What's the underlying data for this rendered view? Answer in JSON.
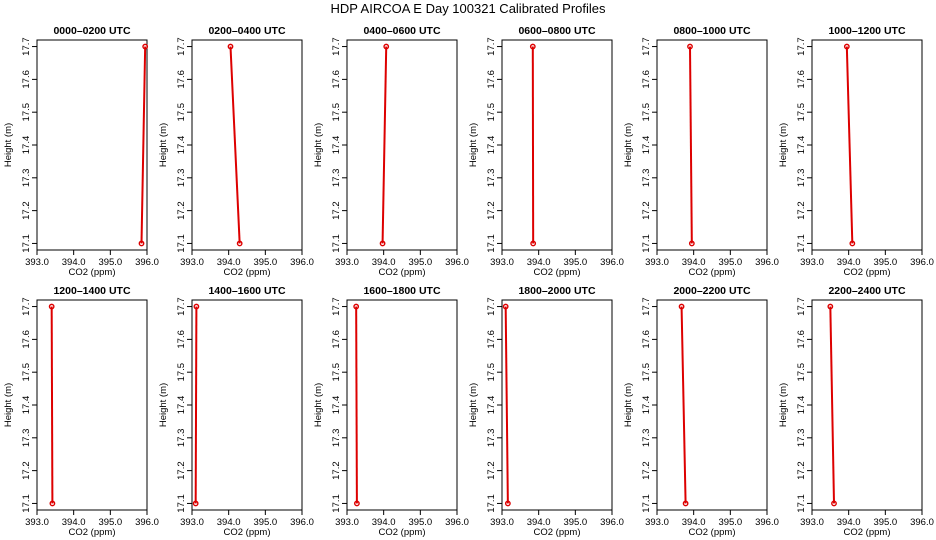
{
  "figure": {
    "title": "HDP AIRCOA E  Day 100321  Calibrated Profiles"
  },
  "colors": {
    "profile_line": "#dd0000",
    "frame": "#000000",
    "background": "#ffffff"
  },
  "chart_data": [
    {
      "type": "line",
      "title": "0000–0200 UTC",
      "xlabel": "CO2 (ppm)",
      "ylabel": "Height (m)",
      "xlim": [
        393.0,
        396.0
      ],
      "ylim": [
        17.08,
        17.72
      ],
      "grid": false,
      "xticks": [
        "393.0",
        "394.0",
        "395.0",
        "396.0"
      ],
      "yticks": [
        "17.1",
        "17.2",
        "17.3",
        "17.4",
        "17.5",
        "17.6",
        "17.7"
      ],
      "series": [
        {
          "x": [
            395.85,
            395.95
          ],
          "y": [
            17.1,
            17.7
          ]
        }
      ]
    },
    {
      "type": "line",
      "title": "0200–0400 UTC",
      "xlabel": "CO2 (ppm)",
      "ylabel": "Height (m)",
      "xlim": [
        393.0,
        396.0
      ],
      "ylim": [
        17.08,
        17.72
      ],
      "grid": false,
      "xticks": [
        "393.0",
        "394.0",
        "395.0",
        "396.0"
      ],
      "yticks": [
        "17.1",
        "17.2",
        "17.3",
        "17.4",
        "17.5",
        "17.6",
        "17.7"
      ],
      "series": [
        {
          "x": [
            394.3,
            394.05
          ],
          "y": [
            17.1,
            17.7
          ]
        }
      ]
    },
    {
      "type": "line",
      "title": "0400–0600 UTC",
      "xlabel": "CO2 (ppm)",
      "ylabel": "Height (m)",
      "xlim": [
        393.0,
        396.0
      ],
      "ylim": [
        17.08,
        17.72
      ],
      "grid": false,
      "xticks": [
        "393.0",
        "394.0",
        "395.0",
        "396.0"
      ],
      "yticks": [
        "17.1",
        "17.2",
        "17.3",
        "17.4",
        "17.5",
        "17.6",
        "17.7"
      ],
      "series": [
        {
          "x": [
            393.97,
            394.07
          ],
          "y": [
            17.1,
            17.7
          ]
        }
      ]
    },
    {
      "type": "line",
      "title": "0600–0800 UTC",
      "xlabel": "CO2 (ppm)",
      "ylabel": "Height (m)",
      "xlim": [
        393.0,
        396.0
      ],
      "ylim": [
        17.08,
        17.72
      ],
      "grid": false,
      "xticks": [
        "393.0",
        "394.0",
        "395.0",
        "396.0"
      ],
      "yticks": [
        "17.1",
        "17.2",
        "17.3",
        "17.4",
        "17.5",
        "17.6",
        "17.7"
      ],
      "series": [
        {
          "x": [
            393.85,
            393.84
          ],
          "y": [
            17.1,
            17.7
          ]
        }
      ]
    },
    {
      "type": "line",
      "title": "0800–1000 UTC",
      "xlabel": "CO2 (ppm)",
      "ylabel": "Height (m)",
      "xlim": [
        393.0,
        396.0
      ],
      "ylim": [
        17.08,
        17.72
      ],
      "grid": false,
      "xticks": [
        "393.0",
        "394.0",
        "395.0",
        "396.0"
      ],
      "yticks": [
        "17.1",
        "17.2",
        "17.3",
        "17.4",
        "17.5",
        "17.6",
        "17.7"
      ],
      "series": [
        {
          "x": [
            393.95,
            393.9
          ],
          "y": [
            17.1,
            17.7
          ]
        }
      ]
    },
    {
      "type": "line",
      "title": "1000–1200 UTC",
      "xlabel": "CO2 (ppm)",
      "ylabel": "Height (m)",
      "xlim": [
        393.0,
        396.0
      ],
      "ylim": [
        17.08,
        17.72
      ],
      "grid": false,
      "xticks": [
        "393.0",
        "394.0",
        "395.0",
        "396.0"
      ],
      "yticks": [
        "17.1",
        "17.2",
        "17.3",
        "17.4",
        "17.5",
        "17.6",
        "17.7"
      ],
      "series": [
        {
          "x": [
            394.1,
            393.95
          ],
          "y": [
            17.1,
            17.7
          ]
        }
      ]
    },
    {
      "type": "line",
      "title": "1200–1400 UTC",
      "xlabel": "CO2 (ppm)",
      "ylabel": "Height (m)",
      "xlim": [
        393.0,
        396.0
      ],
      "ylim": [
        17.08,
        17.72
      ],
      "grid": false,
      "xticks": [
        "393.0",
        "394.0",
        "395.0",
        "396.0"
      ],
      "yticks": [
        "17.1",
        "17.2",
        "17.3",
        "17.4",
        "17.5",
        "17.6",
        "17.7"
      ],
      "series": [
        {
          "x": [
            393.42,
            393.4
          ],
          "y": [
            17.1,
            17.7
          ]
        }
      ]
    },
    {
      "type": "line",
      "title": "1400–1600 UTC",
      "xlabel": "CO2 (ppm)",
      "ylabel": "Height (m)",
      "xlim": [
        393.0,
        396.0
      ],
      "ylim": [
        17.08,
        17.72
      ],
      "grid": false,
      "xticks": [
        "393.0",
        "394.0",
        "395.0",
        "396.0"
      ],
      "yticks": [
        "17.1",
        "17.2",
        "17.3",
        "17.4",
        "17.5",
        "17.6",
        "17.7"
      ],
      "series": [
        {
          "x": [
            393.1,
            393.12
          ],
          "y": [
            17.1,
            17.7
          ]
        }
      ]
    },
    {
      "type": "line",
      "title": "1600–1800 UTC",
      "xlabel": "CO2 (ppm)",
      "ylabel": "Height (m)",
      "xlim": [
        393.0,
        396.0
      ],
      "ylim": [
        17.08,
        17.72
      ],
      "grid": false,
      "xticks": [
        "393.0",
        "394.0",
        "395.0",
        "396.0"
      ],
      "yticks": [
        "17.1",
        "17.2",
        "17.3",
        "17.4",
        "17.5",
        "17.6",
        "17.7"
      ],
      "series": [
        {
          "x": [
            393.27,
            393.25
          ],
          "y": [
            17.1,
            17.7
          ]
        }
      ]
    },
    {
      "type": "line",
      "title": "1800–2000 UTC",
      "xlabel": "CO2 (ppm)",
      "ylabel": "Height (m)",
      "xlim": [
        393.0,
        396.0
      ],
      "ylim": [
        17.08,
        17.72
      ],
      "grid": false,
      "xticks": [
        "393.0",
        "394.0",
        "395.0",
        "396.0"
      ],
      "yticks": [
        "17.1",
        "17.2",
        "17.3",
        "17.4",
        "17.5",
        "17.6",
        "17.7"
      ],
      "series": [
        {
          "x": [
            393.16,
            393.1
          ],
          "y": [
            17.1,
            17.7
          ]
        }
      ]
    },
    {
      "type": "line",
      "title": "2000–2200 UTC",
      "xlabel": "CO2 (ppm)",
      "ylabel": "Height (m)",
      "xlim": [
        393.0,
        396.0
      ],
      "ylim": [
        17.08,
        17.72
      ],
      "grid": false,
      "xticks": [
        "393.0",
        "394.0",
        "395.0",
        "396.0"
      ],
      "yticks": [
        "17.1",
        "17.2",
        "17.3",
        "17.4",
        "17.5",
        "17.6",
        "17.7"
      ],
      "series": [
        {
          "x": [
            393.78,
            393.67
          ],
          "y": [
            17.1,
            17.7
          ]
        }
      ]
    },
    {
      "type": "line",
      "title": "2200–2400 UTC",
      "xlabel": "CO2 (ppm)",
      "ylabel": "Height (m)",
      "xlim": [
        393.0,
        396.0
      ],
      "ylim": [
        17.08,
        17.72
      ],
      "grid": false,
      "xticks": [
        "393.0",
        "394.0",
        "395.0",
        "396.0"
      ],
      "yticks": [
        "17.1",
        "17.2",
        "17.3",
        "17.4",
        "17.5",
        "17.6",
        "17.7"
      ],
      "series": [
        {
          "x": [
            393.6,
            393.5
          ],
          "y": [
            17.1,
            17.7
          ]
        }
      ]
    }
  ]
}
